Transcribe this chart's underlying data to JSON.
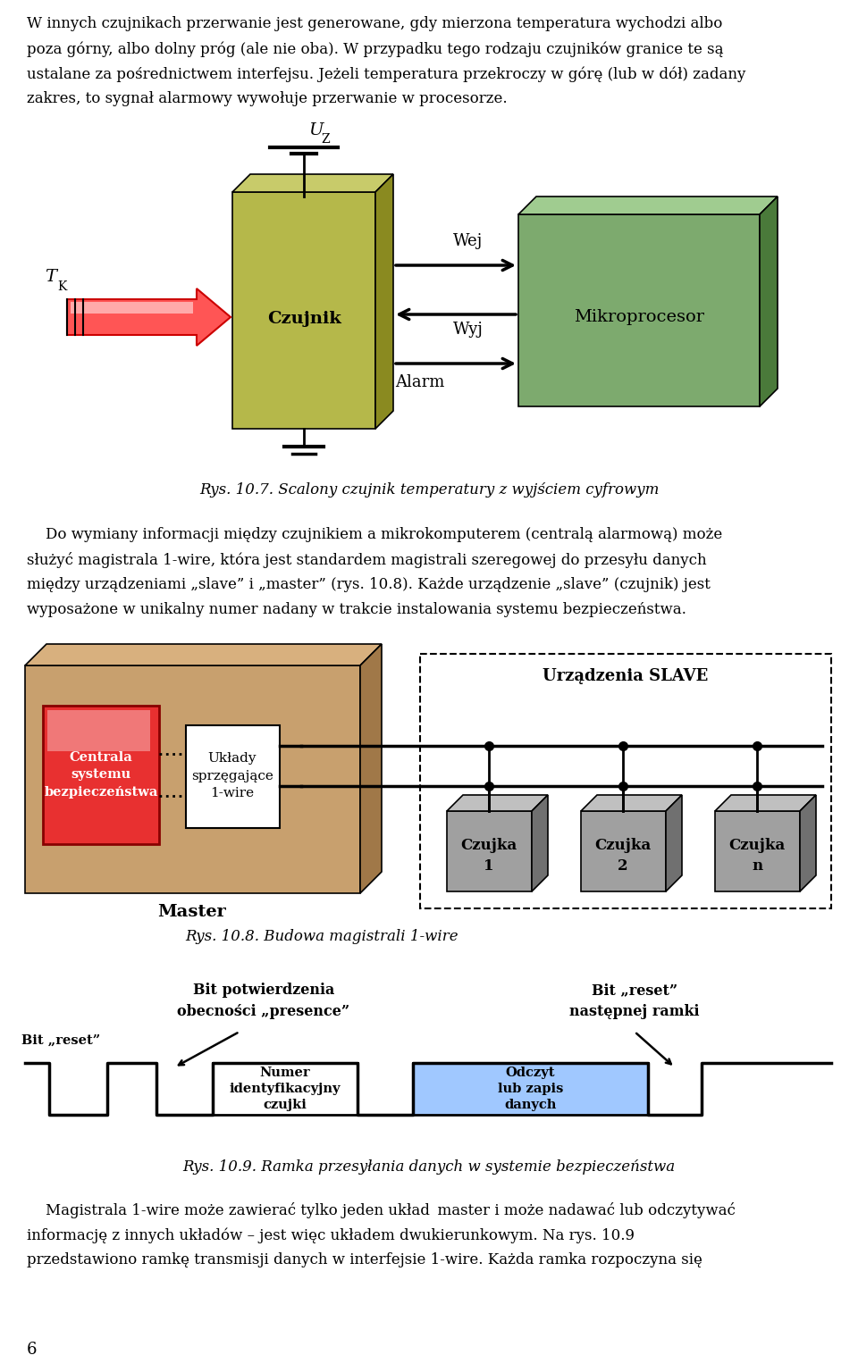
{
  "bg_color": "#ffffff",
  "page_number": "6",
  "fig107_caption": "Rys. 10.7. Scalony czujnik temperatury z wyjściem cyfrowym",
  "fig108_caption": "Rys. 10.8. Budowa magistrali 1-wire",
  "fig109_caption": "Rys. 10.9. Ramka przesyłania danych w systemie bezpieczeństwa",
  "czujnik_color": "#b5b84a",
  "czujnik_color_dark": "#8a8a20",
  "czujnik_color_top": "#c8cb6a",
  "mikroproc_color": "#7daa6e",
  "mikroproc_color_dark": "#4a7a3a",
  "mikroproc_color_top": "#a0cc90",
  "master_box_color": "#c8a06e",
  "master_box_dark": "#a07848",
  "master_box_top": "#d8b07e",
  "centrala_color": "#e83030",
  "czujka_color": "#a0a0a0",
  "czujka_dark": "#707070",
  "czujka_top": "#c0c0c0",
  "odczyt_color": "#a0c8ff"
}
